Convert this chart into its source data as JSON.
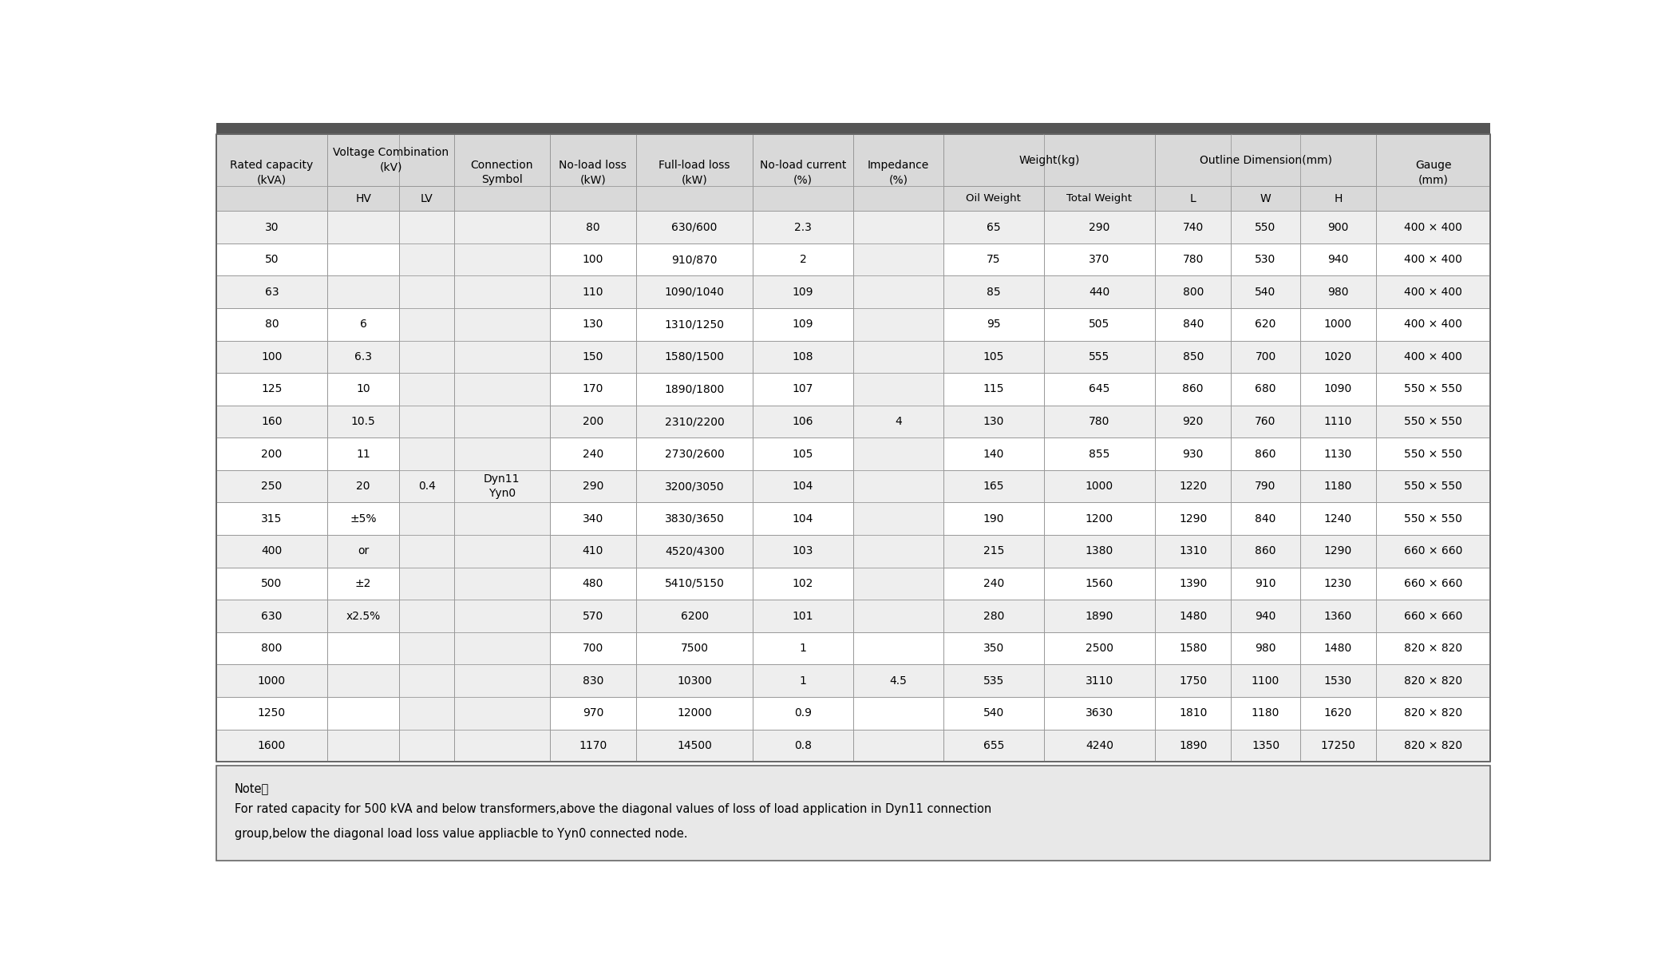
{
  "header_bg": "#d9d9d9",
  "row_bg_even": "#eeeeee",
  "row_bg_odd": "#ffffff",
  "note_bg": "#e8e8e8",
  "title_bar_color": "#555555",
  "border_color": "#999999",
  "text_color": "#000000",
  "fig_bg": "#ffffff",
  "hv_col_values": [
    "",
    "",
    "",
    "6",
    "6.3",
    "10",
    "10.5",
    "11",
    "20",
    "±5%",
    "or",
    "±2",
    "x2.5%",
    "",
    "",
    "",
    ""
  ],
  "lv_col_value": "0.4",
  "rows": [
    [
      "30",
      "80",
      "630/600",
      "2.3",
      "",
      "65",
      "290",
      "740",
      "550",
      "900",
      "400 × 400"
    ],
    [
      "50",
      "100",
      "910/870",
      "2",
      "",
      "75",
      "370",
      "780",
      "530",
      "940",
      "400 × 400"
    ],
    [
      "63",
      "110",
      "1090/1040",
      "109",
      "",
      "85",
      "440",
      "800",
      "540",
      "980",
      "400 × 400"
    ],
    [
      "80",
      "130",
      "1310/1250",
      "109",
      "",
      "95",
      "505",
      "840",
      "620",
      "1000",
      "400 × 400"
    ],
    [
      "100",
      "150",
      "1580/1500",
      "108",
      "",
      "105",
      "555",
      "850",
      "700",
      "1020",
      "400 × 400"
    ],
    [
      "125",
      "170",
      "1890/1800",
      "107",
      "",
      "115",
      "645",
      "860",
      "680",
      "1090",
      "550 × 550"
    ],
    [
      "160",
      "200",
      "2310/2200",
      "106",
      "4",
      "130",
      "780",
      "920",
      "760",
      "1110",
      "550 × 550"
    ],
    [
      "200",
      "240",
      "2730/2600",
      "105",
      "",
      "140",
      "855",
      "930",
      "860",
      "1130",
      "550 × 550"
    ],
    [
      "250",
      "290",
      "3200/3050",
      "104",
      "",
      "165",
      "1000",
      "1220",
      "790",
      "1180",
      "550 × 550"
    ],
    [
      "315",
      "340",
      "3830/3650",
      "104",
      "",
      "190",
      "1200",
      "1290",
      "840",
      "1240",
      "550 × 550"
    ],
    [
      "400",
      "410",
      "4520/4300",
      "103",
      "",
      "215",
      "1380",
      "1310",
      "860",
      "1290",
      "660 × 660"
    ],
    [
      "500",
      "480",
      "5410/5150",
      "102",
      "",
      "240",
      "1560",
      "1390",
      "910",
      "1230",
      "660 × 660"
    ],
    [
      "630",
      "570",
      "6200",
      "101",
      "",
      "280",
      "1890",
      "1480",
      "940",
      "1360",
      "660 × 660"
    ],
    [
      "800",
      "700",
      "7500",
      "1",
      "",
      "350",
      "2500",
      "1580",
      "980",
      "1480",
      "820 × 820"
    ],
    [
      "1000",
      "830",
      "10300",
      "1",
      "4.5",
      "535",
      "3110",
      "1750",
      "1100",
      "1530",
      "820 × 820"
    ],
    [
      "1250",
      "970",
      "12000",
      "0.9",
      "",
      "540",
      "3630",
      "1810",
      "1180",
      "1620",
      "820 × 820"
    ],
    [
      "1600",
      "1170",
      "14500",
      "0.8",
      "",
      "655",
      "4240",
      "1890",
      "1350",
      "17250",
      "820 × 820"
    ]
  ],
  "note_title": "Note：",
  "note_line1": "For rated capacity for 500 kVA and below transformers,above the diagonal values of loss of load application in Dyn11 connection",
  "note_line2": "group,below the diagonal load loss value appliacble to Yyn0 connected node."
}
